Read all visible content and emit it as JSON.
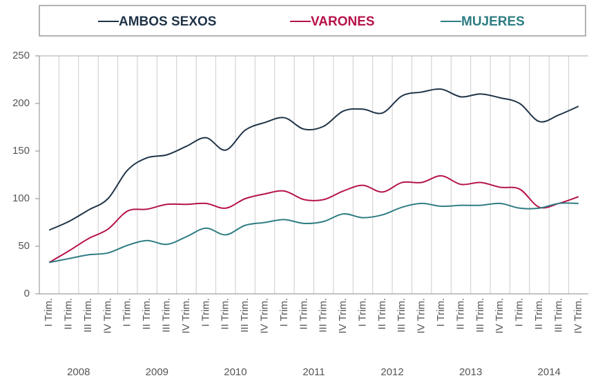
{
  "chart_data": {
    "type": "line",
    "categories": [
      "I Trim.",
      "II Trim.",
      "III Trim.",
      "IV Trim.",
      "I Trim.",
      "II Trim.",
      "III Trim.",
      "IV Trim.",
      "I Trim.",
      "II Trim.",
      "III Trim.",
      "IV Trim.",
      "I Trim.",
      "II Trim.",
      "III Trim.",
      "IV Trim.",
      "I Trim.",
      "II Trim.",
      "III Trim.",
      "IV Trim.",
      "I Trim.",
      "II Trim.",
      "III Trim.",
      "IV Trim.",
      "I Trim.",
      "II Trim.",
      "III Trim.",
      "IV Trim."
    ],
    "years": [
      "2008",
      "2009",
      "2010",
      "2011",
      "2012",
      "2013",
      "2014"
    ],
    "series": [
      {
        "name": "AMBOS SEXOS",
        "color": "#1f3347",
        "values": [
          67,
          76,
          88,
          100,
          130,
          143,
          146,
          155,
          164,
          151,
          172,
          180,
          185,
          173,
          176,
          192,
          194,
          190,
          208,
          212,
          215,
          207,
          210,
          206,
          200,
          181,
          188,
          197
        ]
      },
      {
        "name": "VARONES",
        "color": "#b5124a",
        "values": [
          33,
          45,
          58,
          68,
          87,
          89,
          94,
          94,
          95,
          90,
          100,
          105,
          108,
          99,
          99,
          108,
          114,
          107,
          117,
          117,
          124,
          115,
          117,
          112,
          110,
          91,
          95,
          102
        ]
      },
      {
        "name": "MUJERES",
        "color": "#2e7d82",
        "values": [
          33,
          37,
          41,
          43,
          51,
          56,
          52,
          60,
          69,
          62,
          72,
          75,
          78,
          74,
          76,
          84,
          80,
          83,
          91,
          95,
          92,
          93,
          93,
          95,
          90,
          90,
          95,
          95
        ]
      }
    ],
    "ylim": [
      0,
      250
    ],
    "yticks": [
      0,
      50,
      100,
      150,
      200,
      250
    ],
    "grid": "vertical"
  }
}
